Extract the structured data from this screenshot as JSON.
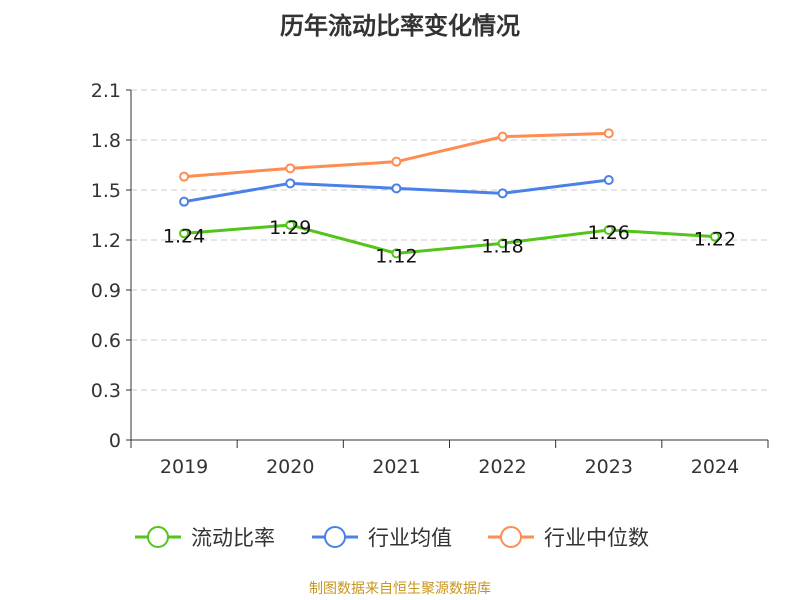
{
  "chart_data": {
    "type": "line",
    "title": "历年流动比率变化情况",
    "categories": [
      "2019",
      "2020",
      "2021",
      "2022",
      "2023",
      "2024"
    ],
    "ylim": [
      0,
      2.1
    ],
    "yticks": [
      "0",
      "0.3",
      "0.6",
      "0.9",
      "1.2",
      "1.5",
      "1.8",
      "2.1"
    ],
    "grid": true,
    "legend_position": "bottom",
    "series": [
      {
        "name": "流动比率",
        "color": "#52c41a",
        "values": [
          1.24,
          1.29,
          1.12,
          1.18,
          1.26,
          1.22
        ],
        "labels": [
          "1.24",
          "1.29",
          "1.12",
          "1.18",
          "1.26",
          "1.22"
        ]
      },
      {
        "name": "行业均值",
        "color": "#4a80e8",
        "values": [
          1.43,
          1.54,
          1.51,
          1.48,
          1.56,
          null
        ]
      },
      {
        "name": "行业中位数",
        "color": "#ff8c50",
        "values": [
          1.58,
          1.63,
          1.67,
          1.82,
          1.84,
          null
        ]
      }
    ]
  },
  "source": "制图数据来自恒生聚源数据库"
}
